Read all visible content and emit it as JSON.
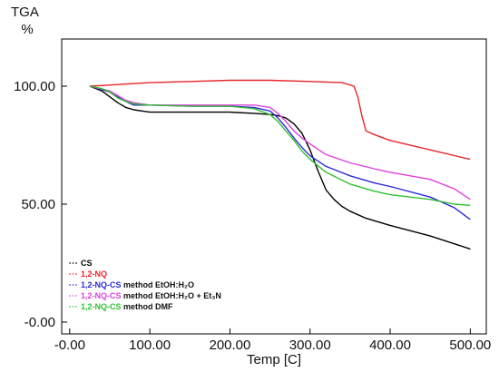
{
  "chart_data": {
    "type": "line",
    "ylabel_top": "TGA",
    "yunit": "%",
    "xlabel": "Temp  [C]",
    "xlim": [
      -10,
      520
    ],
    "ylim": [
      -5,
      120
    ],
    "xticks": [
      0,
      100,
      200,
      300,
      400,
      500
    ],
    "xtick_labels": [
      "-0.00",
      "100.00",
      "200.00",
      "300.00",
      "400.00",
      "500.00"
    ],
    "yticks": [
      0,
      50,
      100
    ],
    "ytick_labels": [
      "-0.00",
      "50.00",
      "100.00"
    ],
    "grid": false,
    "legend_position": "bottom-left",
    "series": [
      {
        "name": "CS",
        "color": "#000000",
        "legend": {
          "bold": "CS",
          "rest": ""
        },
        "x": [
          25,
          40,
          50,
          60,
          70,
          80,
          90,
          100,
          120,
          150,
          200,
          230,
          250,
          260,
          270,
          280,
          290,
          300,
          310,
          320,
          330,
          340,
          350,
          370,
          400,
          450,
          500
        ],
        "y": [
          100,
          98,
          95.5,
          93,
          91,
          90,
          89.5,
          89,
          89,
          89,
          89,
          88.5,
          88,
          87.5,
          86.5,
          84,
          80,
          73,
          64,
          56,
          52,
          49,
          47,
          44,
          41,
          36.5,
          31
        ]
      },
      {
        "name": "1,2-NQ",
        "color": "#e8262b",
        "legend": {
          "bold": "1,2-NQ",
          "rest": ""
        },
        "x": [
          25,
          50,
          100,
          150,
          200,
          250,
          300,
          340,
          355,
          360,
          365,
          370,
          380,
          400,
          450,
          500
        ],
        "y": [
          100,
          100.5,
          101.5,
          102,
          102.5,
          102.5,
          102,
          101.5,
          100,
          95,
          87,
          81,
          79.5,
          77,
          73,
          69
        ]
      },
      {
        "name": "1,2-NQ-CS method EtOH:H2O",
        "color": "#2a2ad8",
        "legend": {
          "bold": "1,2-NQ-CS",
          "rest": " method EtOH:H₂O"
        },
        "x": [
          25,
          50,
          60,
          70,
          80,
          100,
          150,
          200,
          230,
          250,
          260,
          270,
          280,
          290,
          300,
          320,
          350,
          380,
          400,
          450,
          480,
          500
        ],
        "y": [
          100,
          97.5,
          95.5,
          93.5,
          92,
          92,
          91.5,
          91.5,
          91,
          89.5,
          86.5,
          82.5,
          78,
          74,
          70.5,
          66,
          62,
          59,
          57.5,
          53,
          48.5,
          43.5
        ]
      },
      {
        "name": "1,2-NQ-CS method EtOH:H2O + Et3N",
        "color": "#e040e0",
        "legend": {
          "bold": "1,2-NQ-CS",
          "rest": " method EtOH:H₂O + Et₃N"
        },
        "x": [
          25,
          50,
          60,
          70,
          80,
          100,
          150,
          200,
          230,
          250,
          260,
          270,
          280,
          290,
          300,
          320,
          350,
          380,
          400,
          450,
          480,
          500
        ],
        "y": [
          100,
          98,
          96,
          94,
          93,
          92,
          92,
          92,
          92,
          91,
          88.5,
          85,
          81,
          78,
          75.5,
          71,
          67.5,
          65,
          63.5,
          60.5,
          56.5,
          52
        ]
      },
      {
        "name": "1,2-NQ-CS method DMF",
        "color": "#2fc02f",
        "legend": {
          "bold": "1,2-NQ-CS",
          "rest": " method DMF"
        },
        "x": [
          25,
          40,
          50,
          60,
          70,
          80,
          100,
          150,
          200,
          230,
          250,
          260,
          270,
          280,
          290,
          300,
          320,
          350,
          380,
          400,
          450,
          480,
          500
        ],
        "y": [
          100,
          99,
          97.5,
          95,
          93.5,
          92.5,
          92,
          91.5,
          91.5,
          90.5,
          88,
          85,
          81,
          77,
          72.5,
          69,
          63.5,
          58.5,
          55.5,
          54,
          52,
          50,
          49.5
        ]
      }
    ]
  }
}
